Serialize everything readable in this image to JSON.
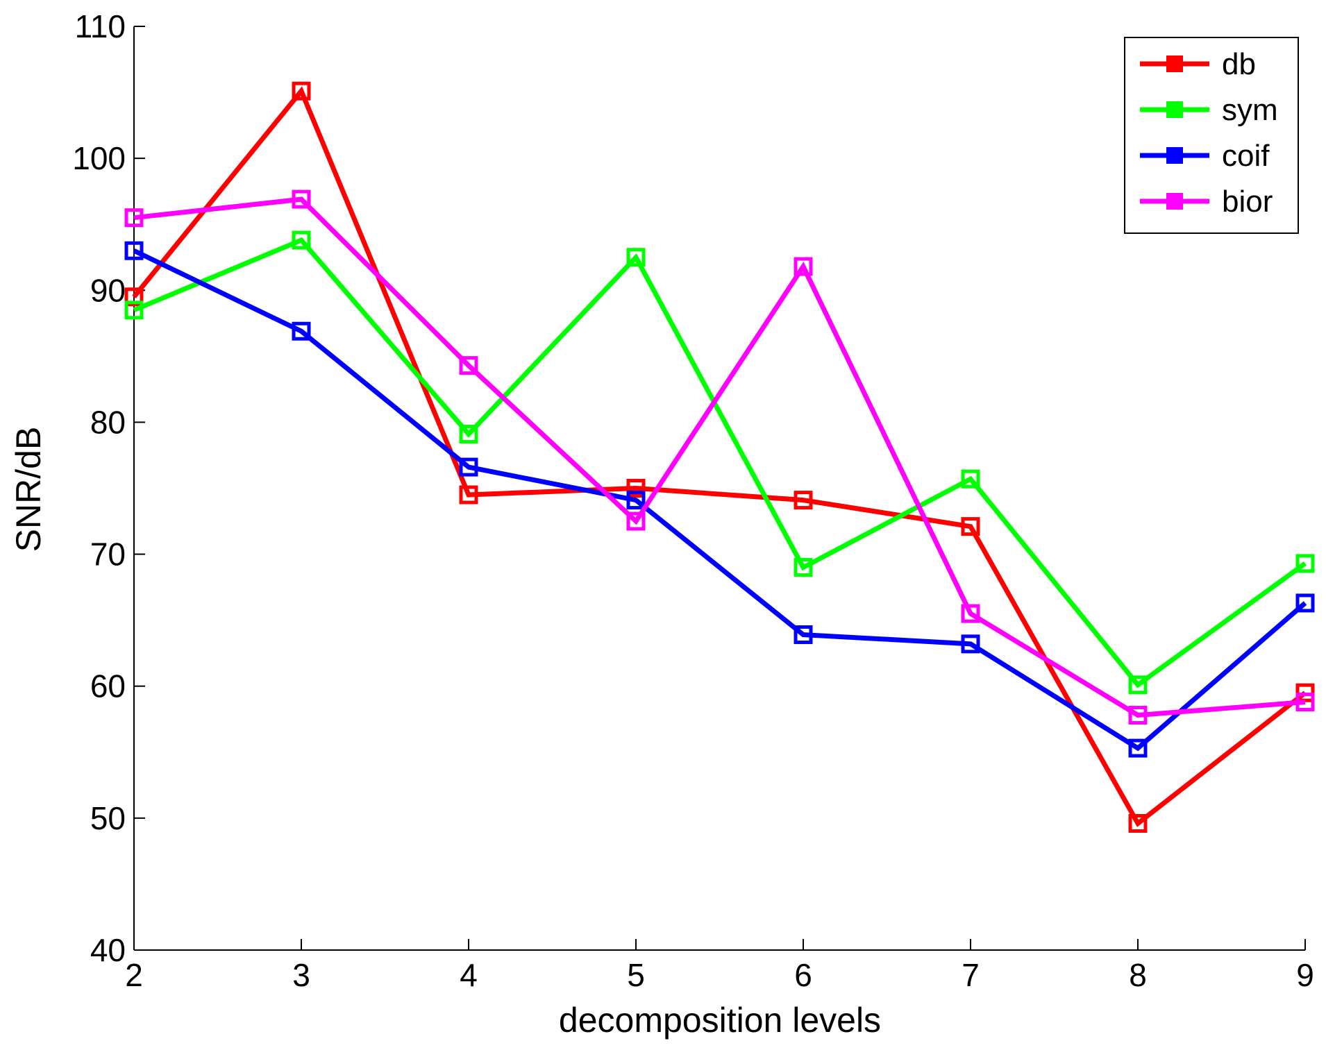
{
  "chart_data": {
    "type": "line",
    "title": "",
    "xlabel": "decomposition levels",
    "ylabel": "SNR/dB",
    "xlim": [
      2,
      9
    ],
    "ylim": [
      40,
      110
    ],
    "x": [
      2,
      3,
      4,
      5,
      6,
      7,
      8,
      9
    ],
    "xticks": [
      2,
      3,
      4,
      5,
      6,
      7,
      8,
      9
    ],
    "yticks": [
      40,
      50,
      60,
      70,
      80,
      90,
      100,
      110
    ],
    "grid": false,
    "legend_position": "top-right",
    "series": [
      {
        "name": "db",
        "color": "#ff0000",
        "values": [
          89.5,
          105.1,
          74.5,
          75.0,
          74.1,
          72.1,
          49.6,
          59.5
        ]
      },
      {
        "name": "sym",
        "color": "#00ff00",
        "values": [
          88.5,
          93.8,
          79.1,
          92.5,
          69.0,
          75.7,
          60.1,
          69.3
        ]
      },
      {
        "name": "coif",
        "color": "#0000ff",
        "values": [
          93.0,
          86.9,
          76.6,
          74.1,
          63.9,
          63.2,
          55.3,
          66.3
        ]
      },
      {
        "name": "bior",
        "color": "#ff00ff",
        "values": [
          95.5,
          96.9,
          84.3,
          72.5,
          91.8,
          65.5,
          57.8,
          58.8
        ]
      }
    ]
  }
}
